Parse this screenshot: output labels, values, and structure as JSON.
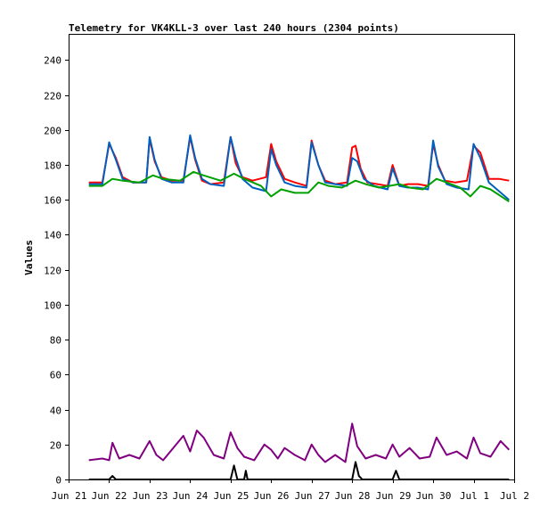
{
  "chart_data": {
    "type": "line",
    "title": "Telemetry for VK4KLL-3 over last 240 hours (2304 points)",
    "ylabel": "Values",
    "xlabel": "",
    "ylim": [
      0,
      255
    ],
    "xlim": [
      "2024-06-21",
      "2024-07-02"
    ],
    "y_ticks": [
      0,
      20,
      40,
      60,
      80,
      100,
      120,
      140,
      160,
      180,
      200,
      220,
      240
    ],
    "x_ticks": [
      "Jun 21",
      "Jun 22",
      "Jun 23",
      "Jun 24",
      "Jun 25",
      "Jun 26",
      "Jun 27",
      "Jun 28",
      "Jun 29",
      "Jun 30",
      "Jul 1",
      "Jul 2"
    ],
    "grid": false,
    "legend": "none",
    "series": [
      {
        "color": "#ff0000",
        "x": [
          "2024-06-21 12:00",
          "2024-06-21 20:00",
          "2024-06-22 00:00",
          "2024-06-22 04:00",
          "2024-06-22 08:00",
          "2024-06-22 14:00",
          "2024-06-22 22:00",
          "2024-06-23 00:00",
          "2024-06-23 03:00",
          "2024-06-23 07:00",
          "2024-06-23 13:00",
          "2024-06-23 20:00",
          "2024-06-24 00:00",
          "2024-06-24 03:00",
          "2024-06-24 07:00",
          "2024-06-24 12:00",
          "2024-06-24 20:00",
          "2024-06-25 00:00",
          "2024-06-25 03:00",
          "2024-06-25 07:00",
          "2024-06-25 13:00",
          "2024-06-25 21:00",
          "2024-06-26 00:00",
          "2024-06-26 03:00",
          "2024-06-26 08:00",
          "2024-06-26 14:00",
          "2024-06-26 21:00",
          "2024-06-27 00:00",
          "2024-06-27 04:00",
          "2024-06-27 08:00",
          "2024-06-27 14:00",
          "2024-06-27 21:00",
          "2024-06-28 00:00",
          "2024-06-28 02:00",
          "2024-06-28 05:00",
          "2024-06-28 09:00",
          "2024-06-28 15:00",
          "2024-06-28 21:00",
          "2024-06-29 00:00",
          "2024-06-29 04:00",
          "2024-06-29 09:00",
          "2024-06-29 15:00",
          "2024-06-29 21:00",
          "2024-06-30 00:00",
          "2024-06-30 03:00",
          "2024-06-30 07:00",
          "2024-06-30 13:00",
          "2024-06-30 20:00",
          "2024-07-01 00:00",
          "2024-07-01 04:00",
          "2024-07-01 09:00",
          "2024-07-01 15:00",
          "2024-07-01 21:00"
        ],
        "values": [
          170,
          170,
          192,
          184,
          173,
          170,
          170,
          195,
          182,
          173,
          171,
          171,
          196,
          183,
          171,
          169,
          170,
          196,
          181,
          173,
          171,
          173,
          192,
          182,
          172,
          170,
          168,
          194,
          180,
          171,
          169,
          170,
          190,
          191,
          178,
          170,
          169,
          168,
          180,
          168,
          169,
          169,
          168,
          192,
          180,
          171,
          170,
          171,
          191,
          187,
          172,
          172,
          171
        ]
      },
      {
        "color": "#0060c0",
        "x": [
          "2024-06-21 12:00",
          "2024-06-21 20:00",
          "2024-06-22 00:00",
          "2024-06-22 04:00",
          "2024-06-22 08:00",
          "2024-06-22 14:00",
          "2024-06-22 22:00",
          "2024-06-23 00:00",
          "2024-06-23 03:00",
          "2024-06-23 07:00",
          "2024-06-23 13:00",
          "2024-06-23 20:00",
          "2024-06-24 00:00",
          "2024-06-24 03:00",
          "2024-06-24 07:00",
          "2024-06-24 12:00",
          "2024-06-24 20:00",
          "2024-06-25 00:00",
          "2024-06-25 03:00",
          "2024-06-25 07:00",
          "2024-06-25 13:00",
          "2024-06-25 21:00",
          "2024-06-26 00:00",
          "2024-06-26 03:00",
          "2024-06-26 08:00",
          "2024-06-26 14:00",
          "2024-06-26 21:00",
          "2024-06-27 00:00",
          "2024-06-27 04:00",
          "2024-06-27 08:00",
          "2024-06-27 14:00",
          "2024-06-27 21:00",
          "2024-06-28 00:00",
          "2024-06-28 03:00",
          "2024-06-28 07:00",
          "2024-06-28 13:00",
          "2024-06-28 21:00",
          "2024-06-29 00:00",
          "2024-06-29 04:00",
          "2024-06-29 09:00",
          "2024-06-29 15:00",
          "2024-06-29 21:00",
          "2024-06-30 00:00",
          "2024-06-30 03:00",
          "2024-06-30 08:00",
          "2024-06-30 14:00",
          "2024-06-30 21:00",
          "2024-07-01 00:00",
          "2024-07-01 04:00",
          "2024-07-01 09:00",
          "2024-07-01 15:00",
          "2024-07-01 21:00"
        ],
        "values": [
          169,
          169,
          193,
          183,
          172,
          170,
          170,
          196,
          183,
          172,
          170,
          170,
          197,
          184,
          172,
          169,
          168,
          196,
          184,
          172,
          167,
          165,
          189,
          180,
          170,
          168,
          167,
          193,
          180,
          170,
          169,
          168,
          184,
          182,
          172,
          168,
          166,
          178,
          168,
          167,
          167,
          166,
          194,
          179,
          169,
          167,
          166,
          192,
          184,
          170,
          165,
          160
        ]
      },
      {
        "color": "#00a000",
        "x": [
          "2024-06-21 12:00",
          "2024-06-21 20:00",
          "2024-06-22 02:00",
          "2024-06-22 08:00",
          "2024-06-22 18:00",
          "2024-06-23 02:00",
          "2024-06-23 08:00",
          "2024-06-23 18:00",
          "2024-06-24 02:00",
          "2024-06-24 08:00",
          "2024-06-24 18:00",
          "2024-06-25 02:00",
          "2024-06-25 08:00",
          "2024-06-25 18:00",
          "2024-06-26 00:00",
          "2024-06-26 06:00",
          "2024-06-26 14:00",
          "2024-06-26 22:00",
          "2024-06-27 04:00",
          "2024-06-27 10:00",
          "2024-06-27 18:00",
          "2024-06-28 02:00",
          "2024-06-28 08:00",
          "2024-06-28 16:00",
          "2024-06-28 22:00",
          "2024-06-29 04:00",
          "2024-06-29 10:00",
          "2024-06-29 18:00",
          "2024-06-30 02:00",
          "2024-06-30 08:00",
          "2024-06-30 16:00",
          "2024-06-30 22:00",
          "2024-07-01 04:00",
          "2024-07-01 10:00",
          "2024-07-01 21:00"
        ],
        "values": [
          168,
          168,
          172,
          171,
          170,
          174,
          172,
          171,
          176,
          174,
          171,
          175,
          172,
          168,
          162,
          166,
          164,
          164,
          170,
          168,
          167,
          171,
          169,
          167,
          168,
          169,
          167,
          166,
          172,
          170,
          167,
          162,
          168,
          166,
          159
        ]
      },
      {
        "color": "#800080",
        "x": [
          "2024-06-21 12:00",
          "2024-06-21 20:00",
          "2024-06-22 00:00",
          "2024-06-22 02:00",
          "2024-06-22 06:00",
          "2024-06-22 12:00",
          "2024-06-22 18:00",
          "2024-06-23 00:00",
          "2024-06-23 04:00",
          "2024-06-23 08:00",
          "2024-06-23 14:00",
          "2024-06-23 20:00",
          "2024-06-24 00:00",
          "2024-06-24 04:00",
          "2024-06-24 08:00",
          "2024-06-24 14:00",
          "2024-06-24 20:00",
          "2024-06-25 00:00",
          "2024-06-25 04:00",
          "2024-06-25 08:00",
          "2024-06-25 14:00",
          "2024-06-25 20:00",
          "2024-06-26 00:00",
          "2024-06-26 04:00",
          "2024-06-26 08:00",
          "2024-06-26 14:00",
          "2024-06-26 20:00",
          "2024-06-27 00:00",
          "2024-06-27 04:00",
          "2024-06-27 08:00",
          "2024-06-27 14:00",
          "2024-06-27 20:00",
          "2024-06-28 00:00",
          "2024-06-28 03:00",
          "2024-06-28 08:00",
          "2024-06-28 14:00",
          "2024-06-28 20:00",
          "2024-06-29 00:00",
          "2024-06-29 04:00",
          "2024-06-29 10:00",
          "2024-06-29 16:00",
          "2024-06-29 22:00",
          "2024-06-30 02:00",
          "2024-06-30 08:00",
          "2024-06-30 14:00",
          "2024-06-30 20:00",
          "2024-07-01 00:00",
          "2024-07-01 04:00",
          "2024-07-01 10:00",
          "2024-07-01 16:00",
          "2024-07-01 21:00"
        ],
        "values": [
          11,
          12,
          11,
          21,
          12,
          14,
          12,
          22,
          14,
          11,
          18,
          25,
          16,
          28,
          24,
          14,
          12,
          27,
          18,
          13,
          11,
          20,
          17,
          12,
          18,
          14,
          11,
          20,
          14,
          10,
          14,
          10,
          32,
          19,
          12,
          14,
          12,
          20,
          13,
          18,
          12,
          13,
          24,
          14,
          16,
          12,
          24,
          15,
          13,
          22,
          17
        ]
      },
      {
        "color": "#000000",
        "x": [
          "2024-06-21 12:00",
          "2024-06-22 00:00",
          "2024-06-22 02:00",
          "2024-06-22 04:00",
          "2024-06-25 00:00",
          "2024-06-25 02:00",
          "2024-06-25 04:00",
          "2024-06-25 08:00",
          "2024-06-25 09:00",
          "2024-06-25 10:00",
          "2024-06-26 00:00",
          "2024-06-28 00:00",
          "2024-06-28 02:00",
          "2024-06-28 04:00",
          "2024-06-28 06:00",
          "2024-06-29 00:00",
          "2024-06-29 02:00",
          "2024-06-29 04:00",
          "2024-07-01 00:00",
          "2024-07-01 21:00"
        ],
        "values": [
          0,
          0,
          2,
          0,
          0,
          8,
          0,
          0,
          5,
          0,
          0,
          0,
          10,
          2,
          0,
          0,
          5,
          0,
          0,
          0
        ]
      }
    ]
  }
}
